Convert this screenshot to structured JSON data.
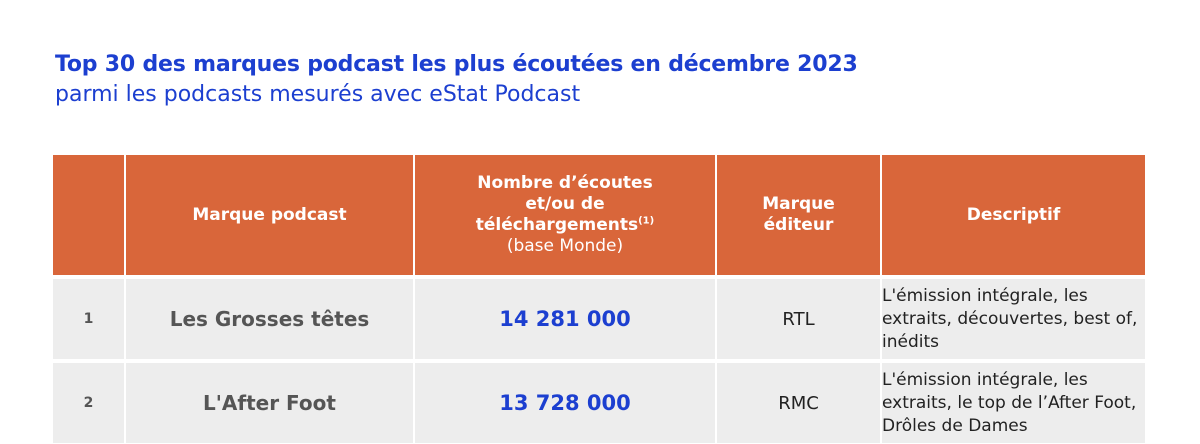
{
  "header": {
    "title": "Top 30 des marques podcast les plus écoutées en décembre 2023",
    "subtitle": "parmi les podcasts mesurés avec eStat Podcast"
  },
  "table": {
    "columns": {
      "rank": "",
      "brand": "Marque podcast",
      "count_line1": "Nombre d’écoutes",
      "count_line2": "et/ou de",
      "count_line3": "téléchargements",
      "count_note": "(1)",
      "count_base": "(base Monde)",
      "editor_line1": "Marque",
      "editor_line2": "éditeur",
      "description": "Descriptif"
    },
    "rows": [
      {
        "rank": "1",
        "brand": "Les Grosses têtes",
        "count": "14 281 000",
        "editor": "RTL",
        "description": "L'émission intégrale, les extraits, découvertes, best of, inédits"
      },
      {
        "rank": "2",
        "brand": "L'After Foot",
        "count": "13 728 000",
        "editor": "RMC",
        "description": "L'émission intégrale, les extraits, le top de l’After Foot, Drôles de Dames"
      }
    ]
  },
  "colors": {
    "title": "#1c3fd0",
    "header_bg": "#d9663a",
    "row_bg": "#ededed",
    "count_text": "#1c3fd0"
  }
}
